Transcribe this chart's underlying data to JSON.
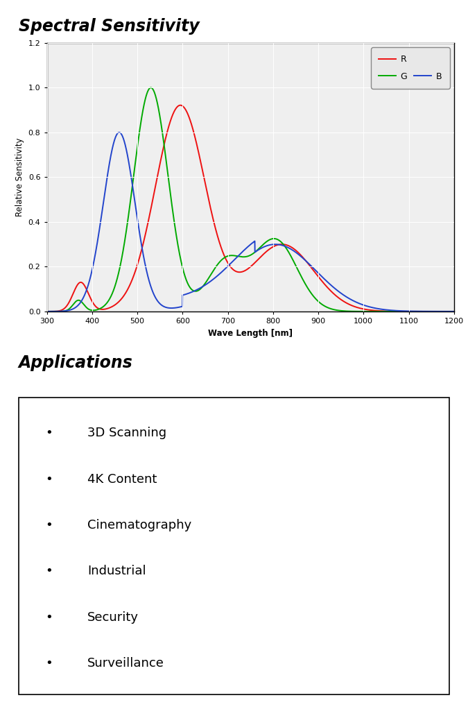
{
  "title": "Spectral Sensitivity",
  "applications_title": "Applications",
  "applications": [
    "3D Scanning",
    "4K Content",
    "Cinematography",
    "Industrial",
    "Security",
    "Surveillance"
  ],
  "xlabel": "Wave Length [nm]",
  "ylabel": "Relative Sensitivity",
  "xlim": [
    300,
    1200
  ],
  "ylim": [
    0.0,
    1.2
  ],
  "xticks": [
    300,
    400,
    500,
    600,
    700,
    800,
    900,
    1000,
    1100,
    1200
  ],
  "yticks": [
    0.0,
    0.2,
    0.4,
    0.6,
    0.8,
    1.0,
    1.2
  ],
  "colors": {
    "R": "#ee1111",
    "G": "#00aa00",
    "B": "#2244cc"
  },
  "bg_color": "#ffffff",
  "plot_bg": "#efefef",
  "grid_color": "#ffffff",
  "legend_bg": "#e8e8e8",
  "legend_edge": "#888888"
}
